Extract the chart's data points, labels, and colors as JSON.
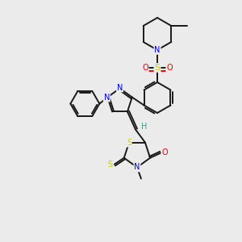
{
  "background_color": "#ebebeb",
  "bond_color": "#1a1a1a",
  "atom_colors": {
    "N": "#0000ff",
    "O": "#ff0000",
    "S": "#cccc00",
    "H": "#3a9a8a",
    "C": "#1a1a1a"
  },
  "figsize": [
    3.0,
    3.0
  ],
  "dpi": 100
}
